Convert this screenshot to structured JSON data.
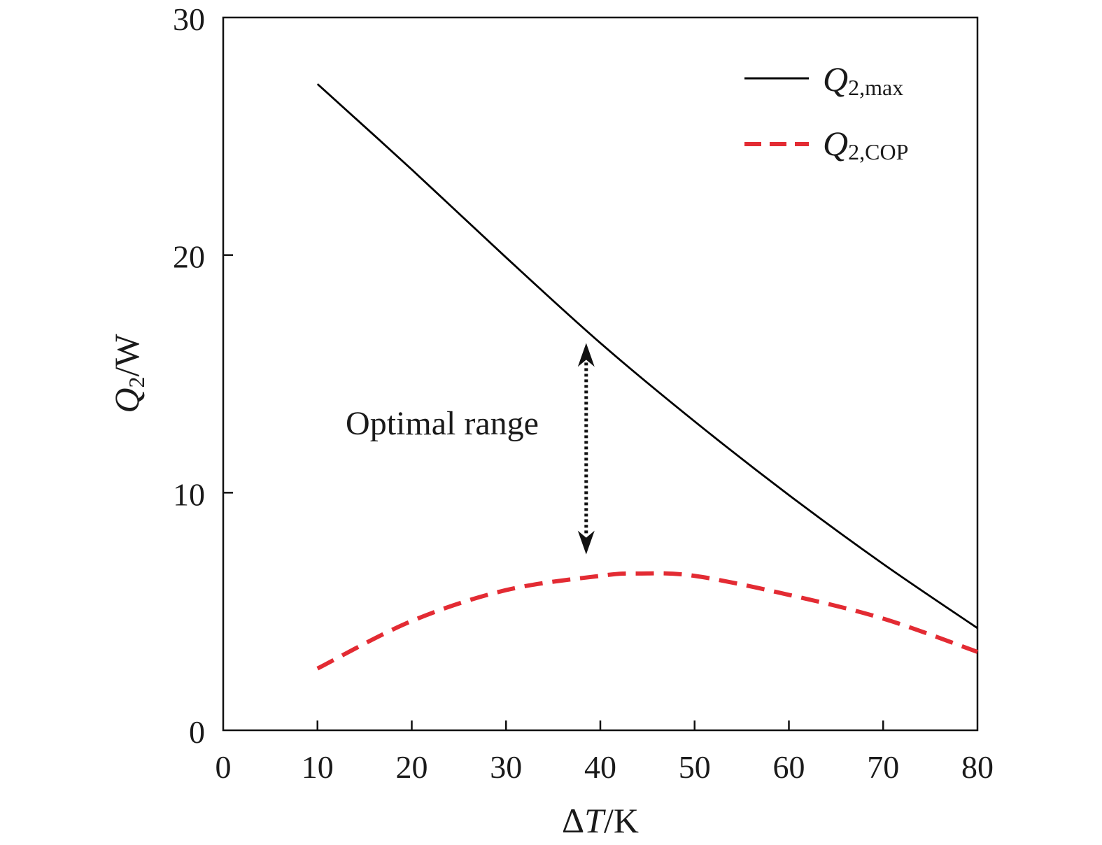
{
  "chart_data": {
    "type": "line",
    "title": "",
    "xlabel": {
      "delta": "Δ",
      "var": "T",
      "unit": "/K"
    },
    "ylabel": {
      "var": "Q",
      "sub": "2",
      "unit": "/W"
    },
    "xlim": [
      0,
      80
    ],
    "ylim": [
      0,
      30
    ],
    "xticks": [
      "0",
      "10",
      "20",
      "30",
      "40",
      "50",
      "60",
      "70",
      "80"
    ],
    "yticks": [
      "0",
      "10",
      "20",
      "30"
    ],
    "grid": false,
    "legend_position": "top-right",
    "series": [
      {
        "name": {
          "var": "Q",
          "sub": "2,max"
        },
        "style": "solid",
        "color": "#000000",
        "x": [
          10,
          20,
          30,
          40,
          50,
          60,
          70,
          80
        ],
        "y": [
          27.2,
          23.6,
          19.9,
          16.3,
          13.0,
          9.9,
          7.0,
          4.3
        ]
      },
      {
        "name": {
          "var": "Q",
          "sub": "2,COP"
        },
        "style": "dashed",
        "color": "#e32b33",
        "x": [
          10,
          20,
          30,
          40,
          44,
          50,
          60,
          70,
          80
        ],
        "y": [
          2.6,
          4.6,
          5.9,
          6.5,
          6.6,
          6.5,
          5.7,
          4.7,
          3.3
        ]
      }
    ],
    "annotations": [
      {
        "text": "Optimal range",
        "arrow": {
          "x": 38.5,
          "y_from": 7.4,
          "y_to": 16.3,
          "style": "dotted-double-arrow"
        }
      }
    ]
  }
}
